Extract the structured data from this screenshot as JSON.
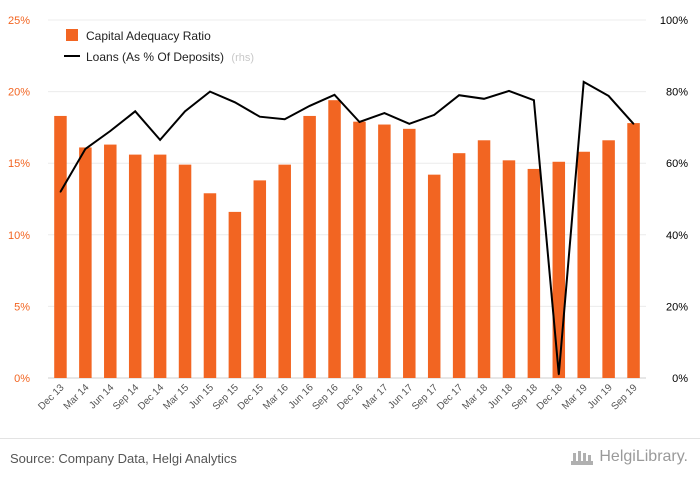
{
  "chart_data": {
    "type": "bar",
    "categories": [
      "Dec 13",
      "Mar 14",
      "Jun 14",
      "Sep 14",
      "Dec 14",
      "Mar 15",
      "Jun 15",
      "Sep 15",
      "Dec 15",
      "Mar 16",
      "Jun 16",
      "Sep 16",
      "Dec 16",
      "Mar 17",
      "Jun 17",
      "Sep 17",
      "Dec 17",
      "Mar 18",
      "Jun 18",
      "Sep 18",
      "Dec 18",
      "Mar 19",
      "Jun 19",
      "Sep 19"
    ],
    "series": [
      {
        "name": "Capital Adequacy Ratio",
        "type": "bar",
        "axis": "left",
        "color": "#f26522",
        "values": [
          18.3,
          16.1,
          16.3,
          15.6,
          15.6,
          14.9,
          12.9,
          11.6,
          13.8,
          14.9,
          18.3,
          19.4,
          17.9,
          17.7,
          17.4,
          14.2,
          15.7,
          16.6,
          15.2,
          14.6,
          15.1,
          15.8,
          16.6,
          17.8
        ]
      },
      {
        "name": "Loans (As % Of Deposits)",
        "type": "line",
        "axis": "right",
        "color": "#000000",
        "values": [
          52,
          64,
          69,
          74.5,
          66.5,
          74.5,
          80,
          77,
          73,
          72.3,
          76,
          79.1,
          71.5,
          74,
          71,
          73.5,
          79,
          78,
          80.2,
          77.6,
          1,
          82.7,
          78.8,
          71
        ]
      }
    ],
    "legend": {
      "bar_label": "Capital Adequacy Ratio",
      "line_label": "Loans (As % Of Deposits)",
      "line_suffix": "(rhs)",
      "position": "top-left"
    },
    "left_axis": {
      "ylim": [
        0,
        25
      ],
      "ticks": [
        "0%",
        "5%",
        "10%",
        "15%",
        "20%",
        "25%"
      ],
      "color": "#f26522"
    },
    "right_axis": {
      "ylim": [
        0,
        100
      ],
      "ticks": [
        "0%",
        "20%",
        "40%",
        "60%",
        "80%",
        "100%"
      ],
      "color": "#000000"
    },
    "grid": true
  },
  "footer": {
    "source": "Source: Company Data, Helgi Analytics",
    "logo_text": "HelgiLibrary."
  }
}
